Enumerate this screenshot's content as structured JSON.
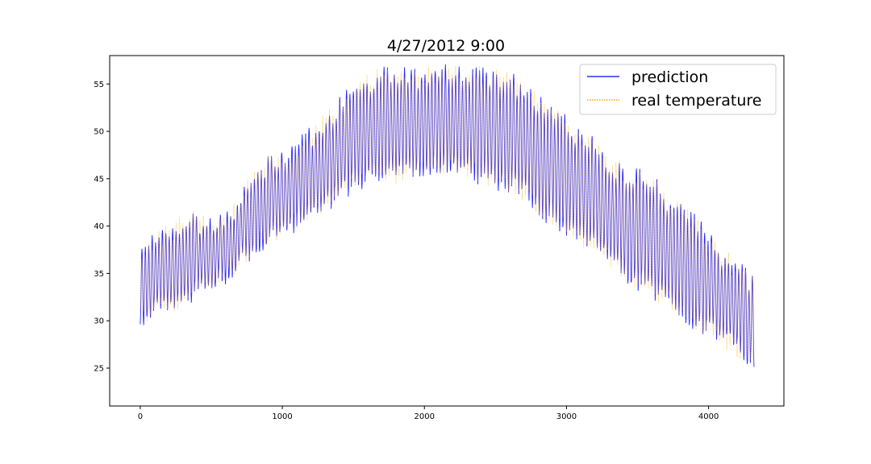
{
  "chart_data": {
    "type": "line",
    "title": "4/27/2012 9:00",
    "xlabel": "",
    "ylabel": "",
    "xlim": [
      -215,
      4530
    ],
    "ylim": [
      21.0,
      58.0
    ],
    "xticks": [
      0,
      1000,
      2000,
      3000,
      4000
    ],
    "yticks": [
      25,
      30,
      35,
      40,
      45,
      50,
      55
    ],
    "grid": false,
    "legend_position": "top-right",
    "x_range": [
      0,
      4320
    ],
    "cycle_length_samples": 24,
    "colors": {
      "prediction": "#0000ff",
      "real": "#ffa500",
      "axis": "#000000"
    },
    "series": [
      {
        "name": "prediction",
        "style": "solid",
        "envelope": {
          "x": [
            0,
            100,
            200,
            300,
            400,
            500,
            600,
            700,
            800,
            900,
            1000,
            1100,
            1200,
            1300,
            1400,
            1500,
            1600,
            1700,
            1800,
            1900,
            2000,
            2100,
            2200,
            2300,
            2400,
            2500,
            2600,
            2700,
            2800,
            2900,
            3000,
            3100,
            3200,
            3300,
            3400,
            3500,
            3600,
            3700,
            3800,
            3900,
            4000,
            4100,
            4200,
            4300,
            4320
          ],
          "high": [
            37.0,
            38.5,
            39.0,
            40.5,
            40.5,
            40.0,
            41.0,
            42.5,
            45.5,
            46.5,
            47.0,
            48.0,
            49.5,
            51.0,
            52.5,
            54.0,
            55.0,
            55.8,
            56.2,
            55.5,
            55.8,
            56.0,
            56.3,
            56.0,
            56.0,
            55.8,
            55.5,
            54.0,
            53.0,
            52.0,
            50.5,
            49.5,
            48.5,
            46.5,
            45.5,
            45.0,
            44.5,
            42.5,
            41.5,
            40.5,
            38.5,
            36.5,
            35.5,
            34.0,
            34.5
          ],
          "low": [
            30.0,
            31.0,
            31.5,
            32.0,
            33.0,
            34.0,
            35.0,
            36.0,
            38.0,
            38.5,
            39.5,
            40.5,
            41.5,
            42.5,
            43.5,
            44.5,
            45.0,
            45.5,
            45.5,
            46.0,
            46.5,
            46.5,
            46.5,
            46.0,
            45.5,
            45.0,
            44.5,
            43.5,
            42.0,
            41.0,
            40.0,
            39.0,
            38.0,
            36.5,
            35.0,
            34.0,
            33.0,
            32.0,
            31.0,
            30.0,
            29.0,
            28.0,
            27.0,
            26.0,
            25.0
          ]
        }
      },
      {
        "name": "real temperature",
        "style": "dotted",
        "envelope": {
          "x": [
            0,
            100,
            200,
            300,
            400,
            500,
            600,
            700,
            800,
            900,
            1000,
            1100,
            1200,
            1300,
            1400,
            1500,
            1600,
            1700,
            1800,
            1900,
            2000,
            2100,
            2200,
            2300,
            2400,
            2500,
            2600,
            2700,
            2800,
            2900,
            3000,
            3100,
            3200,
            3300,
            3400,
            3500,
            3600,
            3700,
            3800,
            3900,
            4000,
            4100,
            4200,
            4300,
            4320
          ],
          "high": [
            37.0,
            38.5,
            39.0,
            40.5,
            40.5,
            40.0,
            41.0,
            42.5,
            45.5,
            46.5,
            47.0,
            48.0,
            49.5,
            51.0,
            52.5,
            54.0,
            55.0,
            55.8,
            56.2,
            55.5,
            55.8,
            56.0,
            56.3,
            56.0,
            56.0,
            55.8,
            55.5,
            54.0,
            53.0,
            52.0,
            50.5,
            49.5,
            48.5,
            46.5,
            45.5,
            45.0,
            44.5,
            42.5,
            41.5,
            40.5,
            38.5,
            36.5,
            35.5,
            34.0,
            34.5
          ],
          "low": [
            30.0,
            31.0,
            31.5,
            32.0,
            33.0,
            34.0,
            35.0,
            36.0,
            38.0,
            38.5,
            39.5,
            40.5,
            41.5,
            42.5,
            43.5,
            44.5,
            45.0,
            45.5,
            45.5,
            46.0,
            46.5,
            46.5,
            46.5,
            46.0,
            45.5,
            45.0,
            44.5,
            43.5,
            42.0,
            41.0,
            40.0,
            39.0,
            38.0,
            36.5,
            35.0,
            34.0,
            33.0,
            32.0,
            31.0,
            30.0,
            29.0,
            28.0,
            27.0,
            26.0,
            25.0
          ]
        }
      }
    ]
  }
}
